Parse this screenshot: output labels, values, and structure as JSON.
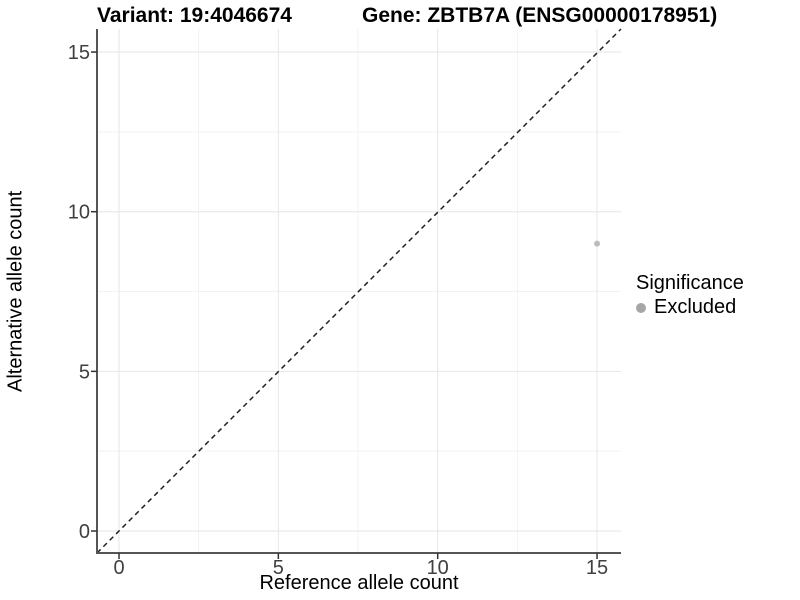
{
  "chart_data": {
    "type": "scatter",
    "title_left": "Variant: 19:4046674",
    "title_right": "Gene: ZBTB7A (ENSG00000178951)",
    "xlabel": "Reference allele count",
    "ylabel": "Alternative allele count",
    "xlim": [
      -0.72,
      15.72
    ],
    "ylim": [
      -0.72,
      15.72
    ],
    "x_ticks": [
      0,
      5,
      10,
      15
    ],
    "y_ticks": [
      0,
      5,
      10,
      15
    ],
    "x_minor_ticks": [
      2.5,
      7.5,
      12.5
    ],
    "y_minor_ticks": [
      2.5,
      7.5,
      12.5
    ],
    "grid": "major+minor",
    "identity_line": {
      "equation": "y = x",
      "style": "dashed",
      "color": "#222222"
    },
    "points": [
      {
        "x": 15,
        "y": 9,
        "significance": "Excluded"
      }
    ],
    "point_color": "#bcbcbc",
    "legend": {
      "title": "Significance",
      "position": "right",
      "entries": [
        {
          "label": "Excluded",
          "color": "#a6a6a6"
        }
      ]
    },
    "colors": {
      "background": "#ffffff",
      "grid_major": "#e6e6e6",
      "grid_minor": "#f2f2f2",
      "axis_line": "#555555",
      "tick_mark": "#333333",
      "tick_label": "#404040",
      "text": "#000000"
    }
  }
}
